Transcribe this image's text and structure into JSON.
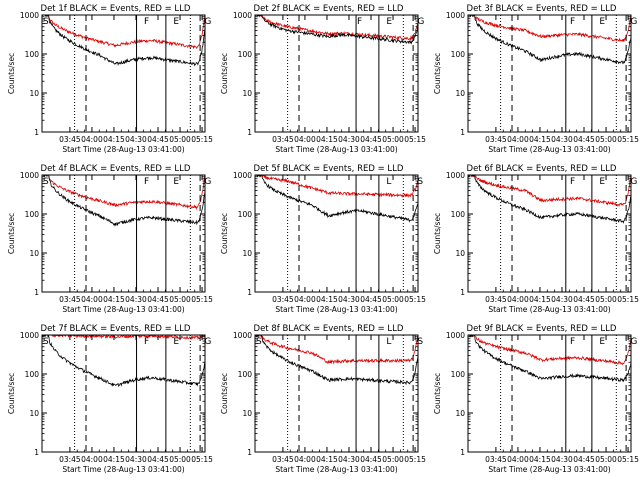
{
  "figure": {
    "title_template": "BLACK = Events, RED = LLD",
    "xlabel": "Start Time (28-Aug-13 03:41:00)",
    "ylabel": "Counts/sec",
    "colors": {
      "events": "#000000",
      "lld": "#dd0000"
    }
  },
  "chart_data": [
    {
      "title": "Det 1f BLACK = Events, RED = LLD",
      "markers": [
        {
          "label": "S",
          "x": 0
        },
        {
          "label": "F",
          "x": 62
        },
        {
          "label": "E",
          "x": 80
        },
        {
          "label": "G",
          "x": 99
        }
      ],
      "dotted": [
        20,
        91
      ],
      "dashed": [
        27,
        97
      ],
      "solid": [
        58,
        76
      ],
      "lld": {
        "start": 1000,
        "dip": 210,
        "dipx": 35,
        "plateau": 165,
        "bump": 220,
        "bumpx": 68,
        "endlvl": 150,
        "spike": 1000
      },
      "events": {
        "start": 1000,
        "dip": 95,
        "dipx": 35,
        "plateau": 55,
        "bump": 80,
        "bumpx": 68,
        "endlvl": 55,
        "spike": 450
      }
    },
    {
      "title": "Det 2f BLACK = Events, RED = LLD",
      "markers": [
        {
          "label": "F",
          "x": 62
        },
        {
          "label": "E",
          "x": 80
        },
        {
          "label": "G",
          "x": 99
        }
      ],
      "dotted": [
        20,
        91
      ],
      "dashed": [
        27,
        97
      ],
      "solid": [
        62,
        76
      ],
      "lld": {
        "start": 1000,
        "dip": 500,
        "dipx": 20,
        "plateau": 330,
        "bump": 340,
        "bumpx": 55,
        "endlvl": 250,
        "spike": 600
      },
      "events": {
        "start": 1000,
        "dip": 400,
        "dipx": 20,
        "plateau": 280,
        "bump": 310,
        "bumpx": 55,
        "endlvl": 200,
        "spike": 500
      }
    },
    {
      "title": "Det 3f BLACK = Events, RED = LLD",
      "markers": [
        {
          "label": "F",
          "x": 62
        },
        {
          "label": "E",
          "x": 80
        },
        {
          "label": "G",
          "x": 99
        }
      ],
      "dotted": [
        20,
        91
      ],
      "dashed": [
        27,
        97
      ],
      "solid": [
        60,
        76
      ],
      "lld": {
        "start": 1000,
        "dip": 400,
        "dipx": 35,
        "plateau": 280,
        "bump": 320,
        "bumpx": 68,
        "endlvl": 220,
        "spike": 1000
      },
      "events": {
        "start": 1000,
        "dip": 120,
        "dipx": 35,
        "plateau": 70,
        "bump": 100,
        "bumpx": 68,
        "endlvl": 60,
        "spike": 300
      }
    },
    {
      "title": "Det 4f BLACK = Events, RED = LLD",
      "markers": [
        {
          "label": "S",
          "x": 0
        },
        {
          "label": "F",
          "x": 62
        },
        {
          "label": "E",
          "x": 80
        },
        {
          "label": "G",
          "x": 99
        }
      ],
      "dotted": [
        20,
        91
      ],
      "dashed": [
        27,
        97
      ],
      "solid": [
        58,
        76
      ],
      "lld": {
        "start": 1000,
        "dip": 220,
        "dipx": 35,
        "plateau": 170,
        "bump": 210,
        "bumpx": 68,
        "endlvl": 150,
        "spike": 1000
      },
      "events": {
        "start": 1000,
        "dip": 90,
        "dipx": 35,
        "plateau": 55,
        "bump": 80,
        "bumpx": 68,
        "endlvl": 60,
        "spike": 400
      }
    },
    {
      "title": "Det 5f BLACK = Events, RED = LLD",
      "markers": [
        {
          "label": "L",
          "x": 80
        },
        {
          "label": "S",
          "x": 99
        }
      ],
      "dotted": [
        20,
        91
      ],
      "dashed": [
        27,
        97
      ],
      "solid": [
        62,
        76
      ],
      "lld": {
        "start": 1000,
        "dip": 700,
        "dipx": 20,
        "plateau": 350,
        "bump": 330,
        "bumpx": 60,
        "endlvl": 300,
        "spike": 700
      },
      "events": {
        "start": 1000,
        "dip": 170,
        "dipx": 35,
        "plateau": 90,
        "bump": 120,
        "bumpx": 65,
        "endlvl": 70,
        "spike": 200
      }
    },
    {
      "title": "Det 6f BLACK = Events, RED = LLD",
      "markers": [
        {
          "label": "F",
          "x": 62
        },
        {
          "label": "E",
          "x": 80
        },
        {
          "label": "G",
          "x": 99
        }
      ],
      "dotted": [
        20,
        91
      ],
      "dashed": [
        27,
        97
      ],
      "solid": [
        60,
        76
      ],
      "lld": {
        "start": 1000,
        "dip": 400,
        "dipx": 35,
        "plateau": 220,
        "bump": 250,
        "bumpx": 68,
        "endlvl": 170,
        "spike": 1000
      },
      "events": {
        "start": 1000,
        "dip": 130,
        "dipx": 35,
        "plateau": 80,
        "bump": 100,
        "bumpx": 68,
        "endlvl": 65,
        "spike": 300
      }
    },
    {
      "title": "Det 7f BLACK = Events, RED = LLD",
      "markers": [
        {
          "label": "S",
          "x": 0
        },
        {
          "label": "F",
          "x": 62
        },
        {
          "label": "E",
          "x": 80
        },
        {
          "label": "G",
          "x": 99
        }
      ],
      "dotted": [
        20,
        91
      ],
      "dashed": [
        27,
        97
      ],
      "solid": [
        58,
        76
      ],
      "lld": {
        "start": 1000,
        "dip": 950,
        "dipx": 30,
        "plateau": 900,
        "bump": 950,
        "bumpx": 68,
        "endlvl": 850,
        "spike": 1000
      },
      "events": {
        "start": 1000,
        "dip": 80,
        "dipx": 35,
        "plateau": 50,
        "bump": 80,
        "bumpx": 68,
        "endlvl": 55,
        "spike": 200
      }
    },
    {
      "title": "Det 8f BLACK = Events, RED = LLD",
      "markers": [
        {
          "label": "S",
          "x": 0
        },
        {
          "label": "L",
          "x": 80
        },
        {
          "label": "S",
          "x": 99
        }
      ],
      "dotted": [
        20,
        91
      ],
      "dashed": [
        27,
        97
      ],
      "solid": [
        62,
        76
      ],
      "lld": {
        "start": 1000,
        "dip": 350,
        "dipx": 35,
        "plateau": 200,
        "bump": 220,
        "bumpx": 60,
        "endlvl": 220,
        "spike": 1000
      },
      "events": {
        "start": 1000,
        "dip": 120,
        "dipx": 35,
        "plateau": 70,
        "bump": 75,
        "bumpx": 60,
        "endlvl": 60,
        "spike": 300
      }
    },
    {
      "title": "Det 9f BLACK = Events, RED = LLD",
      "markers": [
        {
          "label": "F",
          "x": 62
        },
        {
          "label": "E",
          "x": 80
        },
        {
          "label": "G",
          "x": 99
        }
      ],
      "dotted": [
        20,
        91
      ],
      "dashed": [
        27,
        97
      ],
      "solid": [
        60,
        76
      ],
      "lld": {
        "start": 1000,
        "dip": 350,
        "dipx": 35,
        "plateau": 230,
        "bump": 260,
        "bumpx": 68,
        "endlvl": 190,
        "spike": 800
      },
      "events": {
        "start": 1000,
        "dip": 120,
        "dipx": 35,
        "plateau": 75,
        "bump": 90,
        "bumpx": 68,
        "endlvl": 70,
        "spike": 200
      }
    }
  ],
  "axes": {
    "xticks": [
      "03:45",
      "04:00",
      "04:15",
      "04:30",
      "04:45",
      "05:00",
      "05:15"
    ],
    "yticks": [
      "1",
      "10",
      "100",
      "1000"
    ],
    "ylim": [
      1,
      1000
    ],
    "xlim_minutes": [
      -15,
      96
    ]
  }
}
